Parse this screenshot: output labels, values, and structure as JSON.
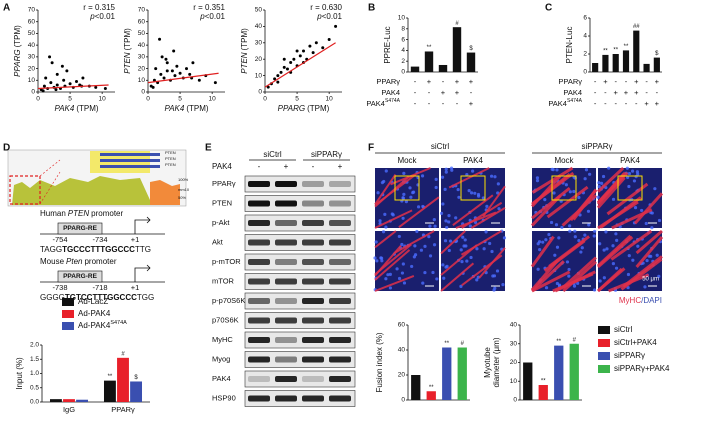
{
  "panel_labels": [
    "A",
    "B",
    "C",
    "D",
    "E",
    "F"
  ],
  "scatter_plots": [
    {
      "type": "scatter",
      "r_text": "r = 0.315",
      "p_text": {
        "italic": "p",
        "rest": "<0.01"
      },
      "ylabel": {
        "gene": "PPARG",
        "unit": "(TPM)"
      },
      "xlabel": {
        "gene": "PAK4",
        "unit": "(TPM)"
      },
      "xlim": [
        0,
        12
      ],
      "xticks": [
        0,
        5,
        10
      ],
      "ylim": [
        0,
        70
      ],
      "yticks": [
        0,
        10,
        20,
        30,
        40,
        50,
        60,
        70
      ],
      "color": "#000000",
      "x": [
        0.5,
        1,
        1.2,
        1.5,
        2,
        2.2,
        2.5,
        3,
        3,
        3.5,
        4,
        4.2,
        4.5,
        5,
        5.5,
        6,
        6.5,
        7,
        8,
        9,
        10.5,
        1.8,
        2.8,
        3.8,
        0.8,
        6.8
      ],
      "y": [
        2,
        5,
        12,
        3,
        8,
        25,
        4,
        6,
        15,
        3,
        10,
        5,
        18,
        7,
        4,
        9,
        6,
        12,
        5,
        4,
        3,
        30,
        2,
        22,
        1,
        5
      ],
      "fit": {
        "x": [
          0,
          11
        ],
        "y": [
          3,
          6
        ],
        "color": "#e02020"
      }
    },
    {
      "type": "scatter",
      "r_text": "r = 0.351",
      "p_text": {
        "italic": "p",
        "rest": "<0.01"
      },
      "ylabel": {
        "gene": "PTEN",
        "unit": "(TPM)"
      },
      "xlabel": {
        "gene": "PAK4",
        "unit": "(TPM)"
      },
      "xlim": [
        0,
        12
      ],
      "xticks": [
        0,
        5,
        10
      ],
      "ylim": [
        0,
        70
      ],
      "yticks": [
        0,
        10,
        20,
        30,
        40,
        50,
        60,
        70
      ],
      "color": "#000000",
      "x": [
        0.5,
        1,
        1.2,
        1.5,
        2,
        2.2,
        2.5,
        3,
        3,
        3.5,
        4,
        4.2,
        4.5,
        5,
        5.5,
        6,
        6.5,
        7,
        8,
        9,
        10.5,
        1.8,
        2.8,
        3.8,
        0.8,
        6.8
      ],
      "y": [
        5,
        10,
        20,
        8,
        15,
        30,
        12,
        18,
        25,
        10,
        35,
        14,
        22,
        16,
        12,
        20,
        15,
        25,
        10,
        14,
        8,
        45,
        28,
        18,
        4,
        12
      ],
      "fit": {
        "x": [
          0,
          11
        ],
        "y": [
          8,
          16
        ],
        "color": "#e02020"
      }
    },
    {
      "type": "scatter",
      "r_text": "r = 0.630",
      "p_text": {
        "italic": "p",
        "rest": "<0.01"
      },
      "ylabel": {
        "gene": "PTEN",
        "unit": "(TPM)"
      },
      "xlabel": {
        "gene": "PPARG",
        "unit": "(TPM)"
      },
      "xlim": [
        0,
        12
      ],
      "xticks": [
        0,
        5,
        10
      ],
      "ylim": [
        0,
        50
      ],
      "yticks": [
        0,
        10,
        20,
        30,
        40,
        50
      ],
      "color": "#000000",
      "x": [
        0.5,
        1,
        1.5,
        2,
        2.5,
        3,
        3.5,
        4,
        4.5,
        5,
        5.5,
        6,
        6.5,
        7,
        7.5,
        8,
        9,
        10,
        11,
        2,
        3,
        4,
        5,
        6
      ],
      "y": [
        3,
        5,
        8,
        10,
        12,
        15,
        14,
        18,
        20,
        16,
        22,
        25,
        20,
        28,
        24,
        30,
        27,
        32,
        40,
        6,
        20,
        12,
        25,
        18
      ],
      "fit": {
        "x": [
          0,
          11
        ],
        "y": [
          3,
          30
        ],
        "color": "#e02020"
      }
    }
  ],
  "luc_charts": [
    {
      "type": "bar",
      "ylabel": "PPRE-Luc",
      "ylim": [
        0,
        10
      ],
      "yticks": [
        0,
        2,
        4,
        6,
        8,
        10
      ],
      "color": "#111111",
      "values": [
        1,
        3.8,
        1.3,
        8.3,
        3.6
      ],
      "significance": [
        null,
        "**",
        null,
        "#",
        "$"
      ],
      "conditions": [
        {
          "name": "PPARγ",
          "signs": [
            "-",
            "+",
            "-",
            "+",
            "+"
          ]
        },
        {
          "name": "PAK4",
          "signs": [
            "-",
            "-",
            "+",
            "+",
            "-"
          ]
        },
        {
          "name": "PAK4",
          "superscript": "S474A",
          "signs": [
            "-",
            "-",
            "-",
            "-",
            "+"
          ]
        }
      ]
    },
    {
      "type": "bar",
      "ylabel": "PTEN-Luc",
      "ylim": [
        0,
        6
      ],
      "yticks": [
        0,
        2,
        4,
        6
      ],
      "color": "#111111",
      "values": [
        1,
        1.9,
        2.0,
        2.4,
        4.6,
        0.9,
        1.6
      ],
      "significance": [
        null,
        "**",
        "**",
        "**",
        "##",
        null,
        "$"
      ],
      "conditions": [
        {
          "name": "PPARγ",
          "signs": [
            "-",
            "+",
            "-",
            "-",
            "+",
            "-",
            "+"
          ]
        },
        {
          "name": "PAK4",
          "signs": [
            "-",
            "-",
            "+",
            "+",
            "+",
            "-",
            "-"
          ]
        },
        {
          "name": "PAK4",
          "superscript": "S474A",
          "signs": [
            "-",
            "-",
            "-",
            "-",
            "-",
            "+",
            "+"
          ]
        }
      ]
    }
  ],
  "conservation_labels": [
    "PTEN",
    "PTEN",
    "PTEN",
    "100%",
    "mm10",
    "50%"
  ],
  "promoters": [
    {
      "species": "Human",
      "gene": "PTEN",
      "suffix": "promoter",
      "element": "PPARG-RE",
      "start": "-754",
      "end": "-734",
      "tss": "+1",
      "seq": [
        "TAGG",
        "TGCCCTTTGGCCC",
        "TTG"
      ]
    },
    {
      "species": "Mouse",
      "gene": "Pten",
      "suffix": "promoter",
      "element": "PPARG-RE",
      "start": "-738",
      "end": "-718",
      "tss": "+1",
      "seq": [
        "GGGG",
        "TGTCCTTTGGCCC",
        "TGG"
      ]
    }
  ],
  "chip_chart": {
    "type": "grouped_bar",
    "ylabel": "Input (%)",
    "categories": [
      "IgG",
      "PPARγ"
    ],
    "ylim": [
      0,
      2
    ],
    "yticks": [
      {
        "value": 0,
        "label": "0.0"
      },
      0.5,
      {
        "value": 1,
        "label": "1.0"
      },
      1.5,
      {
        "value": 2,
        "label": "2.0"
      }
    ],
    "series": [
      {
        "name": "Ad-LacZ",
        "color": "#111111",
        "values": [
          0.1,
          0.75
        ],
        "significance": [
          null,
          "**"
        ]
      },
      {
        "name": "Ad-PAK4",
        "color": "#e8202a",
        "values": [
          0.1,
          1.55
        ],
        "significance": [
          null,
          "#"
        ]
      },
      {
        "name": "Ad-PAK4",
        "superscript": "S474A",
        "color": "#3a4fb0",
        "values": [
          0.08,
          0.72
        ],
        "significance": [
          null,
          "$"
        ]
      }
    ]
  },
  "blot": {
    "groups": [
      "siCtrl",
      "siPPARγ"
    ],
    "treatment": {
      "name": "PAK4",
      "signs": [
        "-",
        "+",
        "-",
        "+"
      ]
    },
    "rows": [
      "PPARγ",
      "PTEN",
      "p-Akt",
      "Akt",
      "p-mTOR",
      "mTOR",
      "p-p70S6K",
      "p70S6K",
      "MyHC",
      "Myog",
      "PAK4",
      "HSP90"
    ]
  },
  "images": {
    "groups": [
      "siCtrl",
      "siPPARγ"
    ],
    "columns": [
      "Mock",
      "PAK4",
      "Mock",
      "PAK4"
    ],
    "scale_bar": "50 μm",
    "stain": [
      "MyHC",
      "/DAPI"
    ]
  },
  "myotube_legend": [
    {
      "name": "siCtrl",
      "color": "#111111"
    },
    {
      "name": "siCtrl+PAK4",
      "color": "#e8202a"
    },
    {
      "name": "siPPARγ",
      "color": "#3a4fb0"
    },
    {
      "name": "siPPARγ+PAK4",
      "color": "#3cb44b"
    }
  ],
  "myotube_charts": [
    {
      "type": "bar",
      "ylabel": [
        "Fusion index (%)"
      ],
      "ylim": [
        0,
        60
      ],
      "yticks": [
        0,
        20,
        40,
        60
      ],
      "values": [
        20,
        7,
        42,
        42
      ],
      "significance": [
        null,
        "**",
        "**",
        "#"
      ]
    },
    {
      "type": "bar",
      "ylabel": [
        "Myotube",
        "diameter (μm)"
      ],
      "ylim": [
        0,
        40
      ],
      "yticks": [
        0,
        10,
        20,
        30,
        40
      ],
      "values": [
        20,
        8,
        29,
        30
      ],
      "significance": [
        null,
        "**",
        "**",
        "#"
      ]
    }
  ]
}
